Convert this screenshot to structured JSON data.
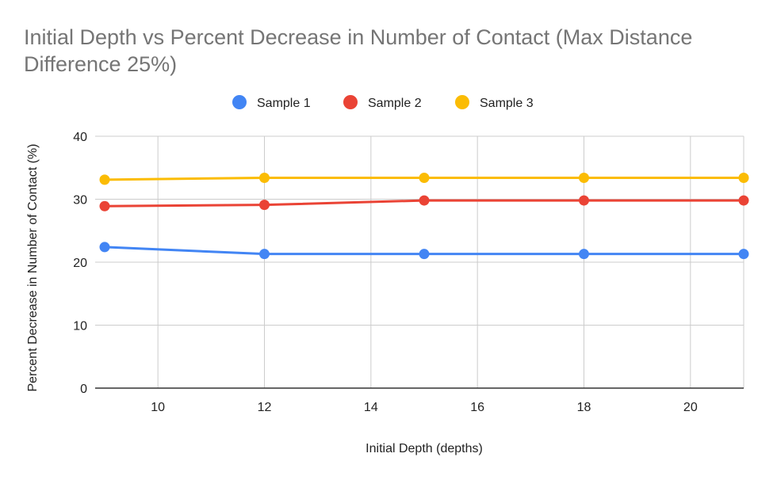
{
  "chart_data": {
    "type": "line",
    "title": "Initial Depth vs Percent Decrease in Number of Contact (Max Distance Difference 25%)",
    "xlabel": "Initial Depth (depths)",
    "ylabel": "Percent Decrease in Number of Contact (%)",
    "x": [
      9,
      12,
      15,
      18,
      21
    ],
    "xlim": [
      9,
      21
    ],
    "ylim": [
      0,
      40
    ],
    "xticks": [
      10,
      12,
      14,
      16,
      18,
      20
    ],
    "yticks": [
      0,
      10,
      20,
      30,
      40
    ],
    "grid": true,
    "legend_position": "top",
    "series": [
      {
        "name": "Sample 1",
        "color": "#4285F4",
        "values": [
          22.4,
          21.3,
          21.3,
          21.3,
          21.3
        ]
      },
      {
        "name": "Sample 2",
        "color": "#EA4335",
        "values": [
          28.9,
          29.1,
          29.8,
          29.8,
          29.8
        ]
      },
      {
        "name": "Sample 3",
        "color": "#FBBC04",
        "values": [
          33.1,
          33.4,
          33.4,
          33.4,
          33.4
        ]
      }
    ]
  }
}
